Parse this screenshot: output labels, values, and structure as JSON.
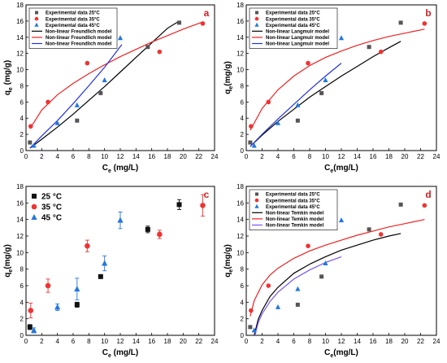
{
  "chart_data": [
    {
      "type": "scatter",
      "panel_label": "a",
      "xlabel": "C",
      "xlabel_sub": "e",
      "xlabel_unit": " (mg/L)",
      "ylabel": "q",
      "ylabel_sub": "e",
      "ylabel_unit": " (mg/g)",
      "xlim": [
        0,
        24
      ],
      "ylim": [
        0,
        18
      ],
      "xticks": [
        0,
        2,
        4,
        6,
        8,
        10,
        12,
        14,
        16,
        18,
        20,
        22,
        24
      ],
      "yticks": [
        0,
        2,
        4,
        6,
        8,
        10,
        12,
        14,
        16,
        18
      ],
      "legend_position": "top-left",
      "series": [
        {
          "name": "Experimental data 25°C",
          "marker": "square",
          "color": "#555555",
          "x": [
            0.5,
            6.5,
            9.5,
            15.5,
            19.5
          ],
          "y": [
            1.0,
            3.7,
            7.1,
            12.8,
            15.8
          ]
        },
        {
          "name": "Experimental data 35°C",
          "marker": "circle",
          "color": "#ee3333",
          "x": [
            0.6,
            2.8,
            7.8,
            17.0,
            22.5
          ],
          "y": [
            3.0,
            6.0,
            10.8,
            12.2,
            15.7
          ]
        },
        {
          "name": "Experimental data 45°C",
          "marker": "triangle",
          "color": "#2277dd",
          "x": [
            1.0,
            4.0,
            6.5,
            10.0,
            12.0
          ],
          "y": [
            0.6,
            3.4,
            5.6,
            8.7,
            13.9
          ]
        }
      ],
      "models": [
        {
          "name": "Non-linear Freundlich model",
          "color": "#000000",
          "x": [
            0.5,
            2,
            4,
            6,
            8,
            10,
            12,
            14,
            16,
            18,
            19.5
          ],
          "y": [
            0.3,
            1.4,
            2.9,
            4.5,
            6.2,
            7.9,
            9.7,
            11.5,
            13.3,
            15.1,
            16.0
          ]
        },
        {
          "name": "Non-linear Freundlich model",
          "color": "#ee2222",
          "x": [
            0.5,
            2,
            4,
            6,
            8,
            10,
            12,
            14,
            16,
            18,
            20,
            22.5
          ],
          "y": [
            2.7,
            5.0,
            6.9,
            8.3,
            9.5,
            10.6,
            11.6,
            12.5,
            13.4,
            14.2,
            15.0,
            15.9
          ]
        },
        {
          "name": "Non-linear Freundlich model",
          "color": "#2233dd",
          "x": [
            0.5,
            2,
            4,
            6,
            8,
            10,
            12.2
          ],
          "y": [
            0.3,
            1.8,
            3.7,
            5.8,
            8.0,
            10.3,
            13.1
          ]
        }
      ]
    },
    {
      "type": "scatter",
      "panel_label": "b",
      "xlabel": "C",
      "xlabel_sub": "e",
      "xlabel_unit": "(mg/L)",
      "ylabel": "q",
      "ylabel_sub": "e",
      "ylabel_unit": "(mg/g)",
      "xlim": [
        0,
        24
      ],
      "ylim": [
        0,
        18
      ],
      "xticks": [
        0,
        2,
        4,
        6,
        8,
        10,
        12,
        14,
        16,
        18,
        20,
        22,
        24
      ],
      "yticks": [
        0,
        2,
        4,
        6,
        8,
        10,
        12,
        14,
        16,
        18
      ],
      "legend_position": "top-left",
      "series": [
        {
          "name": "Experimental data 25°C",
          "marker": "square",
          "color": "#555555",
          "x": [
            0.5,
            6.5,
            9.5,
            15.5,
            19.5
          ],
          "y": [
            1.0,
            3.7,
            7.1,
            12.8,
            15.8
          ]
        },
        {
          "name": "Experimental data 35°C",
          "marker": "circle",
          "color": "#ee3333",
          "x": [
            0.6,
            2.8,
            7.8,
            17.0,
            22.5
          ],
          "y": [
            3.0,
            6.0,
            10.8,
            12.2,
            15.7
          ]
        },
        {
          "name": "Experimental data 45°C",
          "marker": "triangle",
          "color": "#2277dd",
          "x": [
            1.0,
            4.0,
            6.5,
            10.0,
            12.0
          ],
          "y": [
            0.6,
            3.4,
            5.6,
            8.7,
            13.9
          ]
        }
      ],
      "models": [
        {
          "name": "Non-linear Langmuir model",
          "color": "#000000",
          "x": [
            0.5,
            2,
            4,
            6,
            8,
            10,
            12,
            14,
            16,
            18,
            19.5
          ],
          "y": [
            0.5,
            1.9,
            3.6,
            5.1,
            6.6,
            7.9,
            9.2,
            10.4,
            11.6,
            12.7,
            13.5
          ]
        },
        {
          "name": "Non-linear Langmuir model",
          "color": "#ee2222",
          "x": [
            0.5,
            2,
            4,
            6,
            8,
            10,
            12,
            14,
            16,
            18,
            20,
            22.5
          ],
          "y": [
            2.5,
            5.2,
            7.5,
            9.2,
            10.5,
            11.5,
            12.3,
            13.0,
            13.6,
            14.1,
            14.5,
            15.0
          ]
        },
        {
          "name": "Non-linear Langmuir model",
          "color": "#2233dd",
          "x": [
            0.5,
            2,
            4,
            6,
            8,
            10,
            12
          ],
          "y": [
            0.5,
            2.0,
            3.9,
            5.7,
            7.5,
            9.2,
            10.8
          ]
        }
      ]
    },
    {
      "type": "scatter",
      "panel_label": "c",
      "xlabel": "C",
      "xlabel_sub": "e",
      "xlabel_unit": " (mg/L)",
      "ylabel": "q",
      "ylabel_sub": "e",
      "ylabel_unit": "(mg/g)",
      "xlim": [
        0,
        24
      ],
      "ylim": [
        0,
        18
      ],
      "xticks": [
        0,
        2,
        4,
        6,
        8,
        10,
        12,
        14,
        16,
        18,
        20,
        22,
        24
      ],
      "yticks": [
        0,
        2,
        4,
        6,
        8,
        10,
        12,
        14,
        16,
        18
      ],
      "legend_position": "top-left",
      "series": [
        {
          "name": "25 °C",
          "marker": "square",
          "color": "#111111",
          "x": [
            0.5,
            6.5,
            9.5,
            15.5,
            19.5
          ],
          "y": [
            1.0,
            3.7,
            7.1,
            12.8,
            15.8
          ],
          "err": [
            0.3,
            0.3,
            0.2,
            0.4,
            0.6
          ]
        },
        {
          "name": "35 °C",
          "marker": "circle",
          "color": "#ee3333",
          "x": [
            0.6,
            2.8,
            7.8,
            17.0,
            22.5
          ],
          "y": [
            3.0,
            6.0,
            10.8,
            12.2,
            15.7
          ],
          "err": [
            0.9,
            0.8,
            0.7,
            0.5,
            1.3
          ]
        },
        {
          "name": "45 °C",
          "marker": "triangle",
          "color": "#2277dd",
          "x": [
            1.0,
            4.0,
            6.5,
            10.0,
            12.0
          ],
          "y": [
            0.6,
            3.4,
            5.6,
            8.7,
            13.9
          ],
          "err": [
            0.3,
            0.4,
            1.3,
            0.9,
            1.0
          ]
        }
      ],
      "models": []
    },
    {
      "type": "scatter",
      "panel_label": "d",
      "xlabel": "C",
      "xlabel_sub": "e",
      "xlabel_unit": "(mg/L)",
      "ylabel": "q",
      "ylabel_sub": "e",
      "ylabel_unit": "(mg/g)",
      "xlim": [
        0,
        24
      ],
      "ylim": [
        0,
        18
      ],
      "xticks": [
        0,
        2,
        4,
        6,
        8,
        10,
        12,
        14,
        16,
        18,
        20,
        22,
        24
      ],
      "yticks": [
        0,
        2,
        4,
        6,
        8,
        10,
        12,
        14,
        16,
        18
      ],
      "legend_position": "top-left",
      "series": [
        {
          "name": "Experimental data 25°C",
          "marker": "square",
          "color": "#555555",
          "x": [
            0.5,
            6.5,
            9.5,
            15.5,
            19.5
          ],
          "y": [
            1.0,
            3.7,
            7.1,
            12.8,
            15.8
          ]
        },
        {
          "name": "Experimental data 35°C",
          "marker": "circle",
          "color": "#ee3333",
          "x": [
            0.6,
            2.8,
            7.8,
            17.0,
            22.5
          ],
          "y": [
            3.0,
            6.0,
            10.8,
            12.2,
            15.7
          ]
        },
        {
          "name": "Experimental data 45°C",
          "marker": "triangle",
          "color": "#2277dd",
          "x": [
            1.0,
            4.0,
            6.5,
            10.0,
            12.0
          ],
          "y": [
            0.6,
            3.4,
            5.6,
            8.7,
            13.9
          ]
        }
      ],
      "models": [
        {
          "name": "Non-linear Temkin model",
          "color": "#000000",
          "x": [
            1.0,
            1.5,
            2,
            3,
            4,
            6,
            8,
            10,
            12,
            14,
            16,
            18,
            19.5
          ],
          "y": [
            0.0,
            1.9,
            3.0,
            4.7,
            5.8,
            7.5,
            8.6,
            9.5,
            10.3,
            10.9,
            11.5,
            12.0,
            12.3
          ]
        },
        {
          "name": "Non-linear Temkin model",
          "color": "#ee2222",
          "x": [
            0.5,
            1,
            2,
            3,
            4,
            6,
            8,
            10,
            12,
            14,
            16,
            18,
            20,
            22.5
          ],
          "y": [
            2.3,
            4.2,
            6.1,
            7.3,
            8.1,
            9.3,
            10.2,
            10.9,
            11.5,
            12.1,
            12.6,
            13.1,
            13.5,
            14.0
          ]
        },
        {
          "name": "Non-linear Temkin model",
          "color": "#7755ee",
          "x": [
            1.1,
            1.5,
            2,
            3,
            4,
            6,
            8,
            10,
            12
          ],
          "y": [
            0.0,
            1.5,
            2.6,
            4.1,
            5.2,
            6.8,
            7.9,
            8.8,
            9.5
          ]
        }
      ]
    }
  ]
}
